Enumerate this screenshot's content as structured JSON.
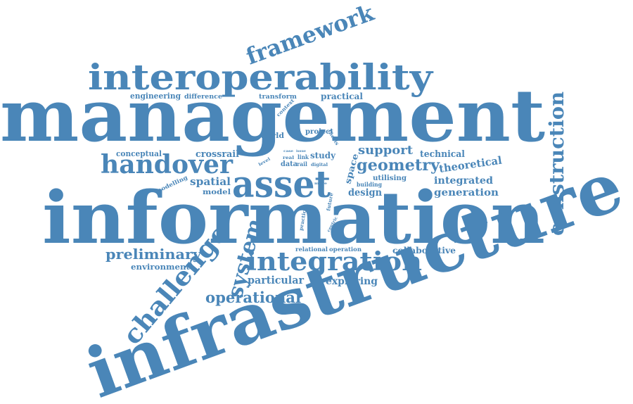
{
  "colors": {
    "word": "#4a86b8",
    "background": "#ffffff"
  },
  "words": [
    {
      "id": "management",
      "text": "management",
      "weight": 100
    },
    {
      "id": "information",
      "text": "information",
      "weight": 98
    },
    {
      "id": "infrastructure",
      "text": "infrastructure",
      "weight": 96
    },
    {
      "id": "interoperability",
      "text": "interoperability",
      "weight": 48
    },
    {
      "id": "asset",
      "text": "asset",
      "weight": 45
    },
    {
      "id": "handover",
      "text": "handover",
      "weight": 36
    },
    {
      "id": "integration",
      "text": "integration",
      "weight": 36
    },
    {
      "id": "challenge",
      "text": "challenge",
      "weight": 36
    },
    {
      "id": "framework",
      "text": "framework",
      "weight": 33
    },
    {
      "id": "construction",
      "text": "construction",
      "weight": 30
    },
    {
      "id": "system",
      "text": "system",
      "weight": 30
    },
    {
      "id": "geometry",
      "text": "geometry",
      "weight": 22
    },
    {
      "id": "preliminary",
      "text": "preliminary",
      "weight": 20
    },
    {
      "id": "operational",
      "text": "operational",
      "weight": 20
    },
    {
      "id": "support",
      "text": "support",
      "weight": 16
    },
    {
      "id": "theoretical",
      "text": "theoretical",
      "weight": 16
    },
    {
      "id": "spatial",
      "text": "spatial",
      "weight": 15
    },
    {
      "id": "particular",
      "text": "particular",
      "weight": 15
    },
    {
      "id": "exploring",
      "text": "exploring",
      "weight": 14
    },
    {
      "id": "integrated",
      "text": "integrated",
      "weight": 14
    },
    {
      "id": "generation",
      "text": "generation",
      "weight": 14
    },
    {
      "id": "design",
      "text": "design",
      "weight": 14
    },
    {
      "id": "crossrail",
      "text": "crossrail",
      "weight": 13
    },
    {
      "id": "technical",
      "text": "technical",
      "weight": 13
    },
    {
      "id": "practical",
      "text": "practical",
      "weight": 12
    },
    {
      "id": "conceptual",
      "text": "conceptual",
      "weight": 11
    },
    {
      "id": "study",
      "text": "study",
      "weight": 12
    },
    {
      "id": "collaborative",
      "text": "collaborative",
      "weight": 12
    },
    {
      "id": "engineering",
      "text": "engineering",
      "weight": 11
    },
    {
      "id": "environment",
      "text": "environment",
      "weight": 11
    },
    {
      "id": "space",
      "text": "space",
      "weight": 11
    },
    {
      "id": "project",
      "text": "project",
      "weight": 10
    },
    {
      "id": "world",
      "text": "world",
      "weight": 10
    },
    {
      "id": "model",
      "text": "model",
      "weight": 10
    },
    {
      "id": "utilising",
      "text": "utilising",
      "weight": 10
    },
    {
      "id": "data",
      "text": "data",
      "weight": 10
    },
    {
      "id": "transform",
      "text": "transform",
      "weight": 9
    },
    {
      "id": "difference",
      "text": "difference",
      "weight": 9
    },
    {
      "id": "modelling",
      "text": "modelling",
      "weight": 8
    },
    {
      "id": "relational",
      "text": "relational",
      "weight": 8
    },
    {
      "id": "operation",
      "text": "operation",
      "weight": 8
    },
    {
      "id": "building",
      "text": "building",
      "weight": 8
    },
    {
      "id": "link",
      "text": "link",
      "weight": 8
    },
    {
      "id": "rail",
      "text": "rail",
      "weight": 8
    },
    {
      "id": "future",
      "text": "future",
      "weight": 7
    },
    {
      "id": "practice",
      "text": "practice",
      "weight": 7
    },
    {
      "id": "thesis",
      "text": "thesis",
      "weight": 7
    },
    {
      "id": "context",
      "text": "context",
      "weight": 7
    },
    {
      "id": "digital",
      "text": "digital",
      "weight": 6
    },
    {
      "id": "level",
      "text": "level",
      "weight": 6
    },
    {
      "id": "real",
      "text": "real",
      "weight": 6
    },
    {
      "id": "centric",
      "text": "centric",
      "weight": 6
    },
    {
      "id": "more",
      "text": "more",
      "weight": 5
    },
    {
      "id": "case",
      "text": "case",
      "weight": 5
    },
    {
      "id": "issue",
      "text": "issue",
      "weight": 5
    }
  ]
}
